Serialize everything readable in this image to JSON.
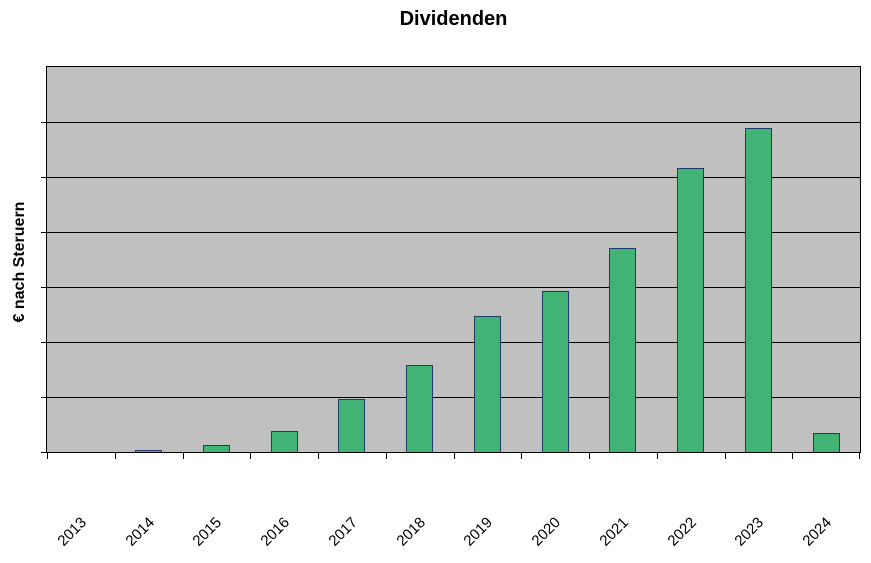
{
  "chart_data": {
    "type": "bar",
    "title": "Dividenden",
    "xlabel": "",
    "ylabel": "€ nach Steruern",
    "categories": [
      "2013",
      "2014",
      "2015",
      "2016",
      "2017",
      "2018",
      "2019",
      "2020",
      "2021",
      "2022",
      "2023",
      "2024"
    ],
    "values": [
      0,
      0.04,
      0.13,
      0.39,
      0.97,
      1.59,
      2.48,
      2.92,
      3.71,
      5.17,
      5.9,
      0.34
    ],
    "ylim": [
      0,
      7
    ],
    "y_gridline_step": 1,
    "y_tick_labels": [],
    "grid": true,
    "legend_position": "none",
    "colors": {
      "bar_fill": "#41b375",
      "bar_border": "#1e3a68",
      "plot_background": "#c0c0c0",
      "gridline": "#000000",
      "text": "#000000",
      "page_background": "#ffffff"
    }
  }
}
